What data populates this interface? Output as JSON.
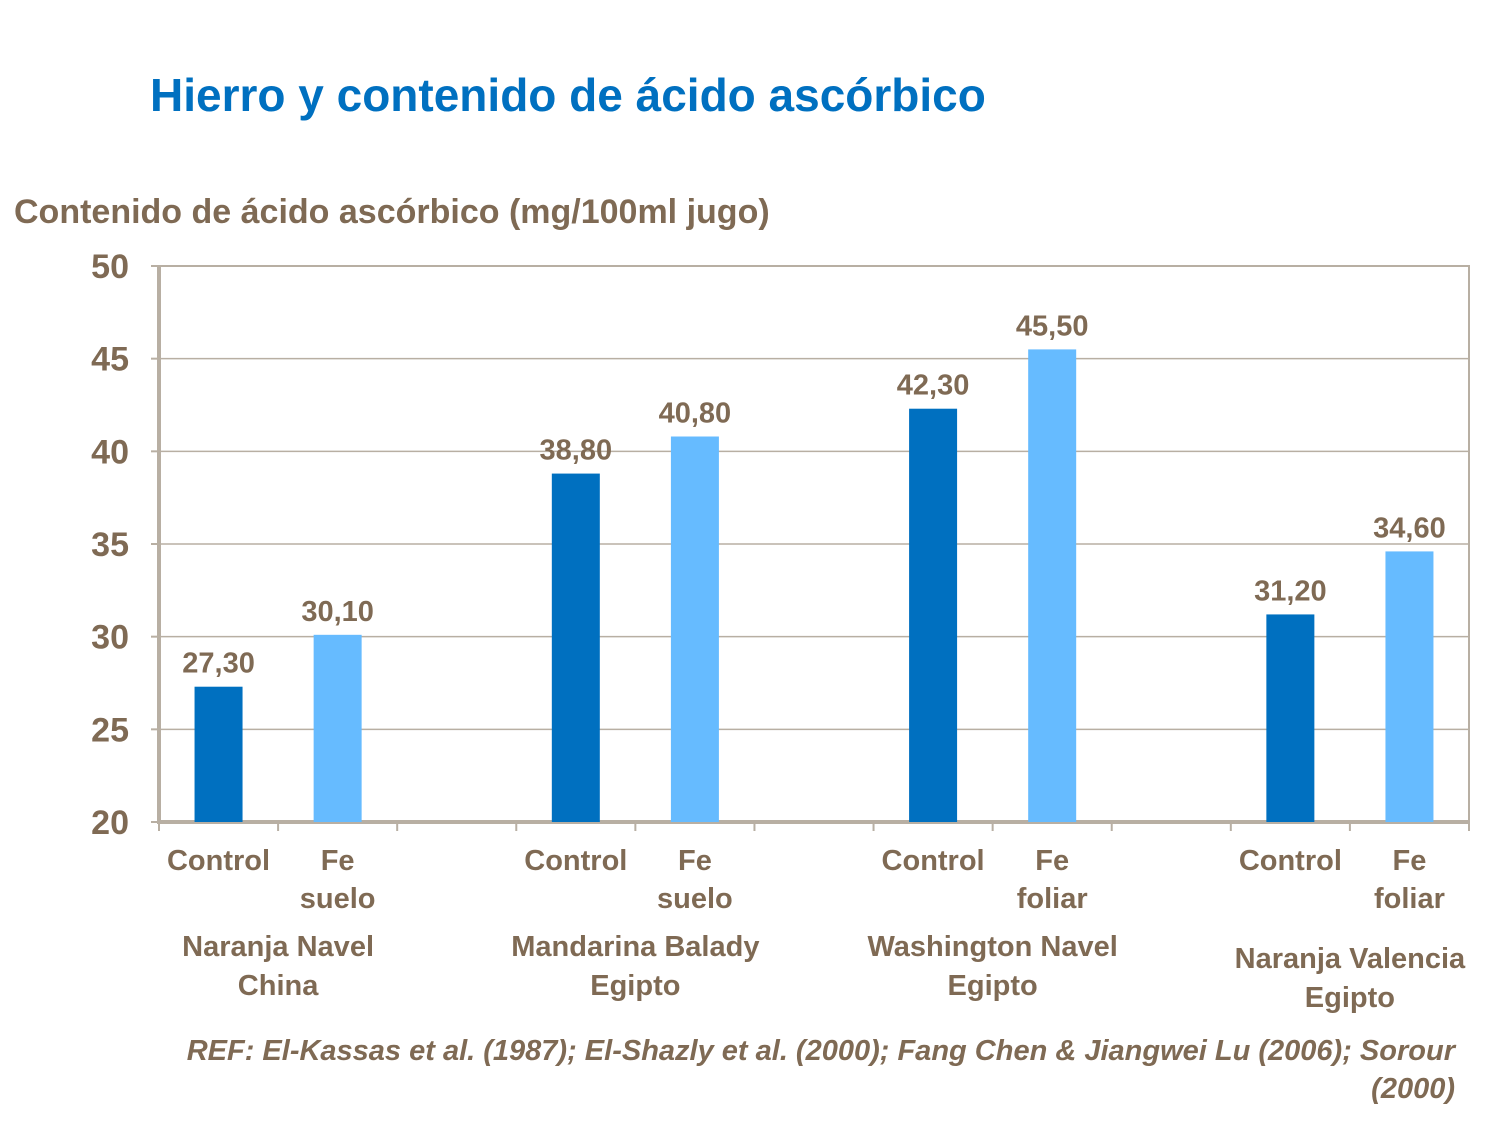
{
  "title": "Hierro y contenido de ácido ascórbico",
  "reference": "REF: El-Kassas et al. (1987); El-Shazly et al. (2000); Fang Chen & Jiangwei Lu (2006); Sorour (2000)",
  "chart_data": {
    "type": "bar",
    "ylabel": "Contenido de ácido ascórbico (mg/100ml jugo)",
    "ylim": [
      20,
      50
    ],
    "yticks": [
      20,
      25,
      30,
      35,
      40,
      45,
      50
    ],
    "grid": true,
    "groups": [
      {
        "label": [
          "Naranja Navel",
          "China"
        ],
        "bars": [
          {
            "label": [
              "Control"
            ],
            "value": 27.3,
            "data_label": "27,30",
            "color": "#0070C0"
          },
          {
            "label": [
              "Fe",
              "suelo"
            ],
            "value": 30.1,
            "data_label": "30,10",
            "color": "#66BBFF"
          }
        ]
      },
      {
        "label": [
          "Mandarina Balady",
          "Egipto"
        ],
        "bars": [
          {
            "label": [
              "Control"
            ],
            "value": 38.8,
            "data_label": "38,80",
            "color": "#0070C0"
          },
          {
            "label": [
              "Fe",
              "suelo"
            ],
            "value": 40.8,
            "data_label": "40,80",
            "color": "#66BBFF"
          }
        ]
      },
      {
        "label": [
          "Washington Navel",
          "Egipto"
        ],
        "bars": [
          {
            "label": [
              "Control"
            ],
            "value": 42.3,
            "data_label": "42,30",
            "color": "#0070C0"
          },
          {
            "label": [
              "Fe",
              "foliar"
            ],
            "value": 45.5,
            "data_label": "45,50",
            "color": "#66BBFF"
          }
        ]
      },
      {
        "label": [
          "Naranja Valencia",
          "Egipto"
        ],
        "bars": [
          {
            "label": [
              "Control"
            ],
            "value": 31.2,
            "data_label": "31,20",
            "color": "#0070C0"
          },
          {
            "label": [
              "Fe",
              "foliar"
            ],
            "value": 34.6,
            "data_label": "34,60",
            "color": "#66BBFF"
          }
        ]
      }
    ]
  }
}
